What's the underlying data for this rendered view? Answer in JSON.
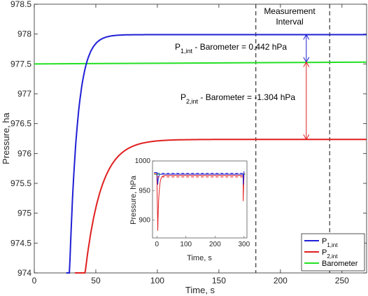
{
  "chart_data": {
    "type": "line",
    "xlabel": "Time, s",
    "ylabel": "Pressure, ha",
    "xlim": [
      0,
      270
    ],
    "ylim": [
      974,
      978.5
    ],
    "xticks": [
      "0",
      "50",
      "100",
      "150",
      "200",
      "250"
    ],
    "yticks": [
      "974",
      "974.5",
      "975",
      "975.5",
      "976",
      "976.5",
      "977",
      "977.5",
      "978",
      "978.5"
    ],
    "series": [
      {
        "name_main": "P",
        "name_sub": "1,int",
        "color": "#1f1fd6",
        "start_time": 26,
        "final": 977.99,
        "tau": 6.5
      },
      {
        "name_main": "P",
        "name_sub": "2,int",
        "color": "#e01f1f",
        "start_time": 33,
        "final": 976.235,
        "tau": 13
      },
      {
        "name": "Barometer",
        "color": "#22e022",
        "start": 977.5,
        "end": 977.53
      }
    ],
    "measurement_interval": {
      "label_line1": "Measurement",
      "label_line2": "Interval",
      "start": 180,
      "end": 240
    },
    "annotations": [
      {
        "prefix": "P",
        "sub": "1,int",
        "suffix": " - Barometer = 0.442 hPa",
        "x_arrow": 221,
        "from": 977.53,
        "to": 977.99,
        "color": "#1f1fd6"
      },
      {
        "prefix": "P",
        "sub": "2,int",
        "suffix": " - Barometer = -1.304 hPa",
        "x_arrow": 221,
        "from": 977.53,
        "to": 976.235,
        "color": "#e01f1f"
      }
    ],
    "inset": {
      "xlabel": "Time, s",
      "ylabel": "Pressure, hPa",
      "xlim": [
        -15,
        310
      ],
      "ylim": [
        870,
        1000
      ],
      "xticks": [
        "0",
        "100",
        "200",
        "300"
      ],
      "yticks": [
        "900",
        "950",
        "1000"
      ]
    },
    "legend": {
      "position": "bottom-right"
    }
  }
}
